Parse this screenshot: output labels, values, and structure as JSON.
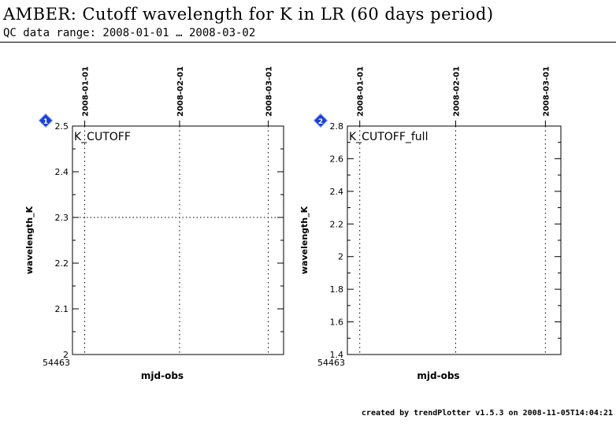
{
  "header": {
    "title": "AMBER: Cutoff wavelength for K in LR (60 days period)",
    "subtitle": "QC data range: 2008-01-01 … 2008-03-02"
  },
  "footer": {
    "text": "created by trendPlotter v1.5.3 on 2008-11-05T14:04:21"
  },
  "colors": {
    "badge": "#1a3fd6",
    "axis": "#000000"
  },
  "chart_data": [
    {
      "type": "scatter",
      "panel_number": "1",
      "panel_label": "K_CUTOFF",
      "xlabel": "mjd-obs",
      "ylabel": "wavelength_K",
      "x_start_label": "54463",
      "xlim": [
        54462,
        54531
      ],
      "ylim": [
        2.0,
        2.5
      ],
      "yticks": [
        {
          "value": 2.0,
          "label": "2"
        },
        {
          "value": 2.1,
          "label": "2.1"
        },
        {
          "value": 2.2,
          "label": "2.2"
        },
        {
          "value": 2.3,
          "label": "2.3"
        },
        {
          "value": 2.4,
          "label": "2.4"
        },
        {
          "value": 2.5,
          "label": "2.5"
        }
      ],
      "date_markers": [
        {
          "mjd": 54466,
          "label": "2008-01-01"
        },
        {
          "mjd": 54497,
          "label": "2008-02-01"
        },
        {
          "mjd": 54526,
          "label": "2008-03-01"
        }
      ],
      "reference_lines": [
        2.3,
        2.5
      ],
      "points": []
    },
    {
      "type": "scatter",
      "panel_number": "2",
      "panel_label": "K_CUTOFF_full",
      "xlabel": "mjd-obs",
      "ylabel": "wavelength_K",
      "x_start_label": "54463",
      "xlim": [
        54462,
        54531
      ],
      "ylim": [
        1.4,
        2.8
      ],
      "yticks": [
        {
          "value": 1.4,
          "label": "1.4"
        },
        {
          "value": 1.6,
          "label": "1.6"
        },
        {
          "value": 1.8,
          "label": "1.8"
        },
        {
          "value": 2.0,
          "label": "2"
        },
        {
          "value": 2.2,
          "label": "2.2"
        },
        {
          "value": 2.4,
          "label": "2.4"
        },
        {
          "value": 2.6,
          "label": "2.6"
        },
        {
          "value": 2.8,
          "label": "2.8"
        }
      ],
      "date_markers": [
        {
          "mjd": 54466,
          "label": "2008-01-01"
        },
        {
          "mjd": 54497,
          "label": "2008-02-01"
        },
        {
          "mjd": 54526,
          "label": "2008-03-01"
        }
      ],
      "reference_lines": [],
      "points": []
    }
  ]
}
